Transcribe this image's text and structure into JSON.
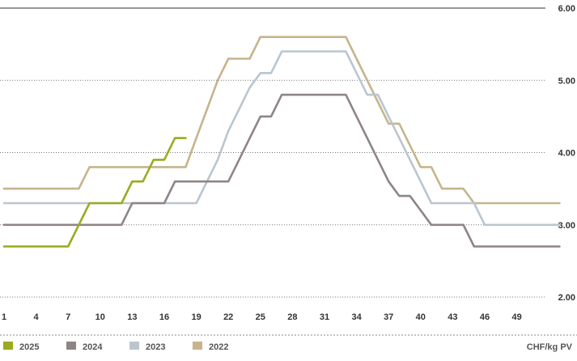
{
  "chart_data": {
    "type": "line",
    "unit": "CHF/kg PV",
    "ylim": [
      2.0,
      6.0
    ],
    "y_ticks": [
      "6.00",
      "5.00",
      "4.00",
      "3.00",
      "2.00"
    ],
    "x_ticks": [
      "1",
      "4",
      "7",
      "10",
      "13",
      "16",
      "19",
      "22",
      "25",
      "28",
      "31",
      "34",
      "37",
      "40",
      "43",
      "46",
      "49"
    ],
    "xlim": [
      1,
      53
    ],
    "grid": "horizontal dotted",
    "legend_position": "bottom",
    "series": [
      {
        "name": "2022",
        "color": "#c6b48c",
        "points": [
          [
            1,
            3.5
          ],
          [
            8,
            3.5
          ],
          [
            9,
            3.8
          ],
          [
            13,
            3.8
          ],
          [
            14,
            3.8
          ],
          [
            18,
            3.8
          ],
          [
            19,
            4.2
          ],
          [
            20,
            4.6
          ],
          [
            21,
            5.0
          ],
          [
            22,
            5.3
          ],
          [
            24,
            5.3
          ],
          [
            25,
            5.6
          ],
          [
            33,
            5.6
          ],
          [
            34,
            5.3
          ],
          [
            35,
            5.0
          ],
          [
            36,
            4.7
          ],
          [
            37,
            4.4
          ],
          [
            38,
            4.4
          ],
          [
            39,
            4.1
          ],
          [
            40,
            3.8
          ],
          [
            41,
            3.8
          ],
          [
            42,
            3.5
          ],
          [
            44,
            3.5
          ],
          [
            45,
            3.3
          ],
          [
            53,
            3.3
          ]
        ]
      },
      {
        "name": "2023",
        "color": "#b9c6d0",
        "points": [
          [
            1,
            3.3
          ],
          [
            19,
            3.3
          ],
          [
            20,
            3.6
          ],
          [
            21,
            3.9
          ],
          [
            22,
            4.3
          ],
          [
            23,
            4.6
          ],
          [
            24,
            4.9
          ],
          [
            25,
            5.1
          ],
          [
            26,
            5.1
          ],
          [
            27,
            5.4
          ],
          [
            33,
            5.4
          ],
          [
            34,
            5.1
          ],
          [
            35,
            4.8
          ],
          [
            36,
            4.8
          ],
          [
            37,
            4.5
          ],
          [
            38,
            4.2
          ],
          [
            39,
            3.9
          ],
          [
            40,
            3.6
          ],
          [
            41,
            3.3
          ],
          [
            45,
            3.3
          ],
          [
            46,
            3.0
          ],
          [
            53,
            3.0
          ]
        ]
      },
      {
        "name": "2024",
        "color": "#908484",
        "points": [
          [
            1,
            3.0
          ],
          [
            12,
            3.0
          ],
          [
            13,
            3.3
          ],
          [
            16,
            3.3
          ],
          [
            17,
            3.6
          ],
          [
            22,
            3.6
          ],
          [
            23,
            3.9
          ],
          [
            24,
            4.2
          ],
          [
            25,
            4.5
          ],
          [
            26,
            4.5
          ],
          [
            27,
            4.8
          ],
          [
            33,
            4.8
          ],
          [
            34,
            4.5
          ],
          [
            35,
            4.2
          ],
          [
            36,
            3.9
          ],
          [
            37,
            3.6
          ],
          [
            38,
            3.4
          ],
          [
            39,
            3.4
          ],
          [
            40,
            3.2
          ],
          [
            41,
            3.0
          ],
          [
            44,
            3.0
          ],
          [
            45,
            2.7
          ],
          [
            53,
            2.7
          ]
        ]
      },
      {
        "name": "2025",
        "color": "#9aab1e",
        "points": [
          [
            1,
            2.7
          ],
          [
            7,
            2.7
          ],
          [
            8,
            3.0
          ],
          [
            9,
            3.3
          ],
          [
            12,
            3.3
          ],
          [
            13,
            3.6
          ],
          [
            14,
            3.6
          ],
          [
            15,
            3.9
          ],
          [
            16,
            3.9
          ],
          [
            17,
            4.2
          ],
          [
            18,
            4.2
          ]
        ]
      }
    ]
  }
}
